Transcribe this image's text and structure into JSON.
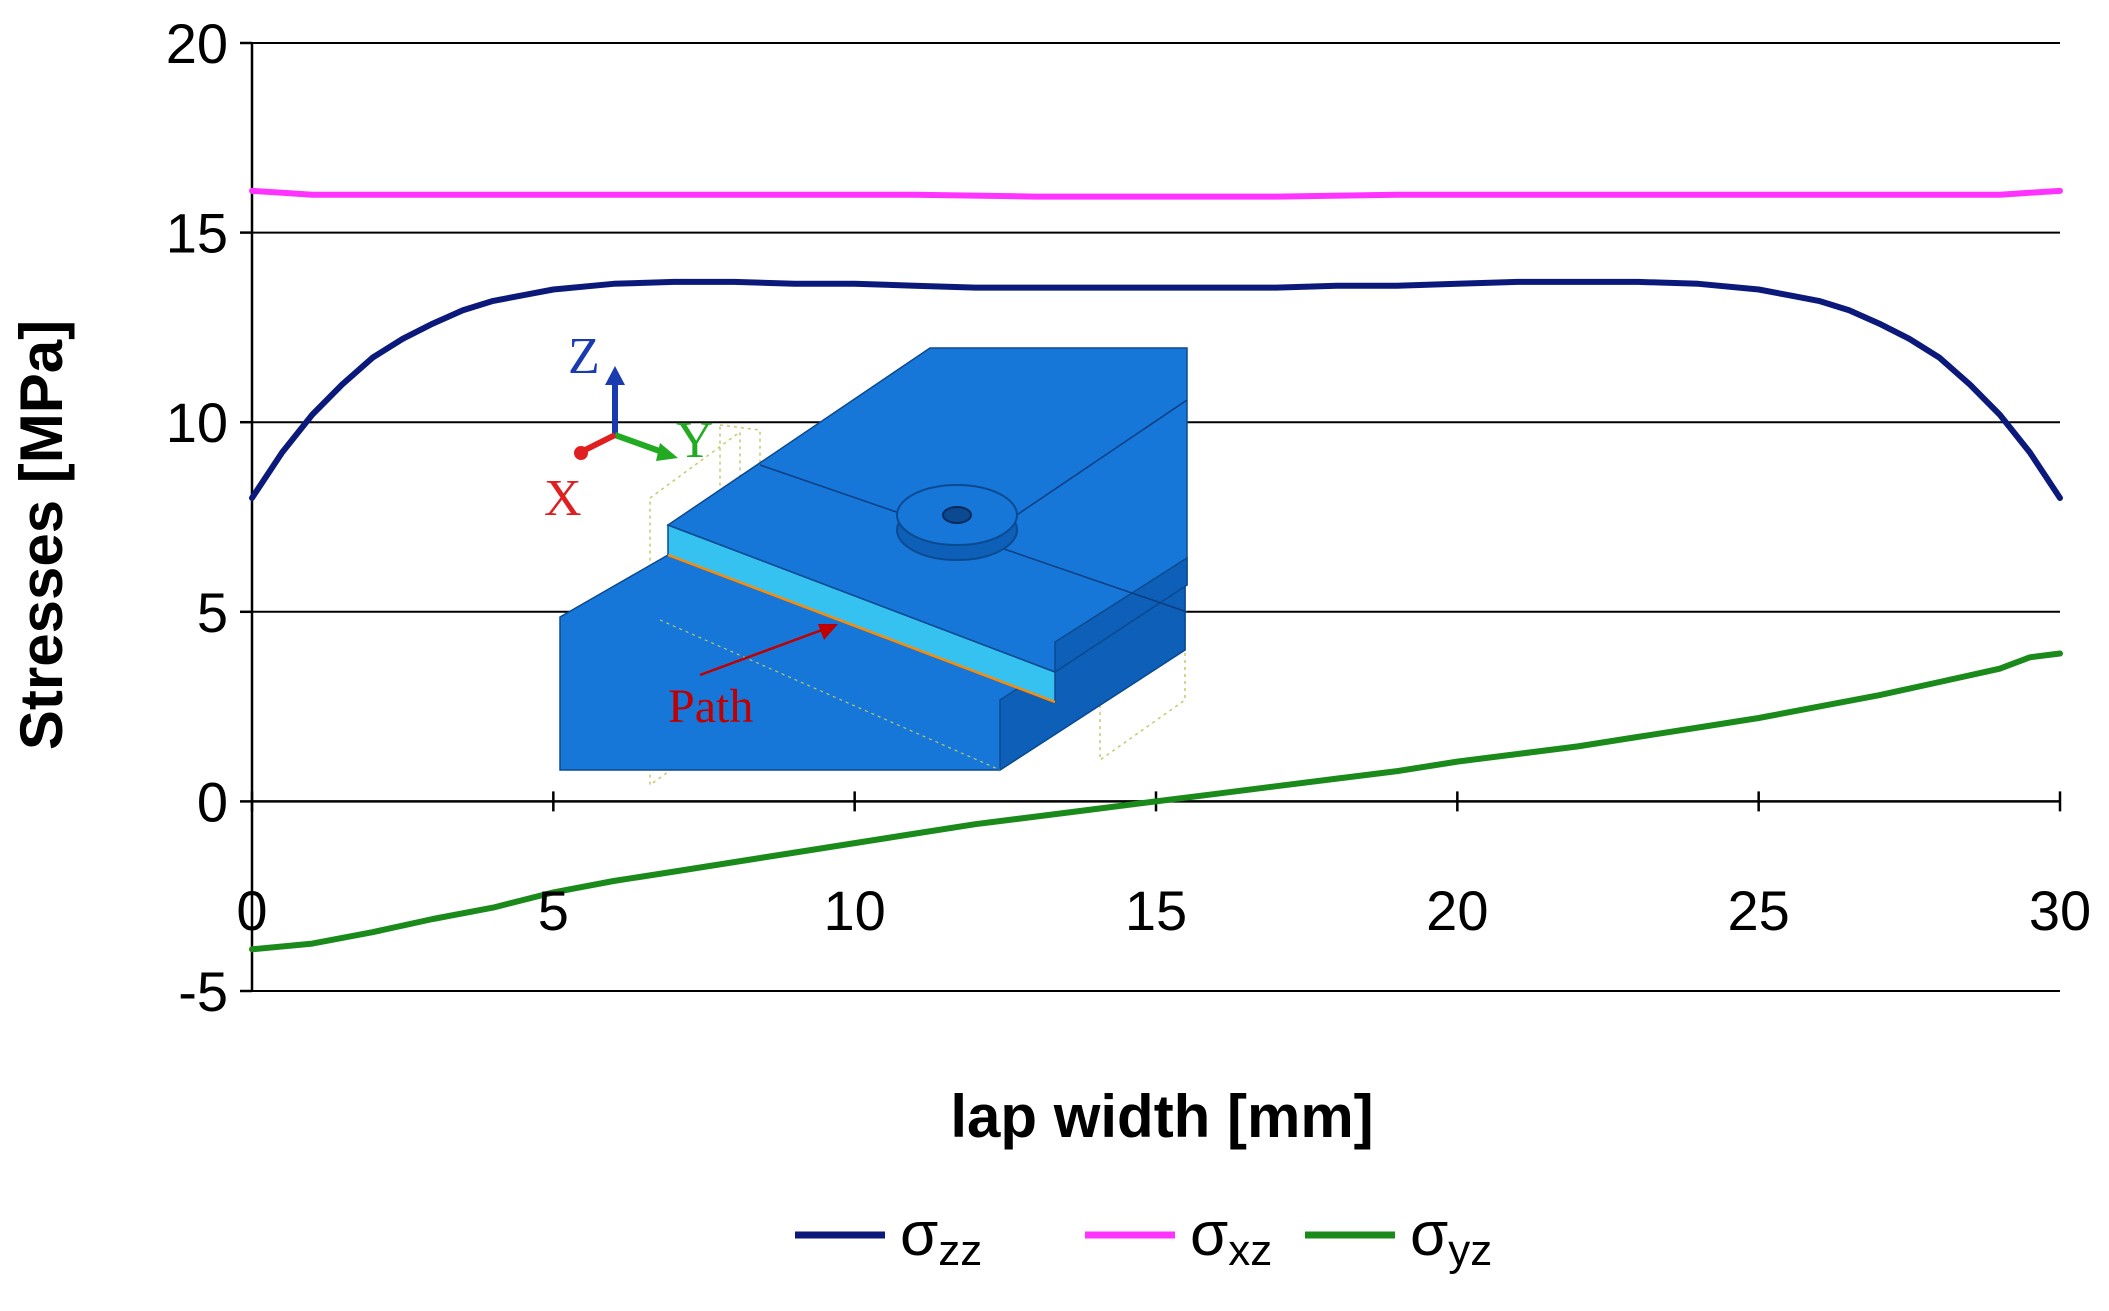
{
  "chart_data": {
    "type": "line",
    "xlabel": "lap width [mm]",
    "ylabel": "Stresses [MPa]",
    "xlim": [
      0,
      30
    ],
    "ylim": [
      -5,
      20
    ],
    "x_ticks": [
      0,
      5,
      10,
      15,
      20,
      25,
      30
    ],
    "y_ticks": [
      -5,
      0,
      5,
      10,
      15,
      20
    ],
    "grid": "horizontal",
    "legend_position": "bottom",
    "series": [
      {
        "name": "σzz",
        "name_main": "σ",
        "name_sub": "zz",
        "color": "#0b1a7a",
        "x": [
          0,
          0.5,
          1,
          1.5,
          2,
          2.5,
          3,
          3.5,
          4,
          4.5,
          5,
          6,
          7,
          8,
          9,
          10,
          11,
          12,
          13,
          14,
          15,
          16,
          17,
          18,
          19,
          20,
          21,
          22,
          23,
          24,
          25,
          25.5,
          26,
          26.5,
          27,
          27.5,
          28,
          28.5,
          29,
          29.5,
          30
        ],
        "y": [
          8.0,
          9.2,
          10.2,
          11.0,
          11.7,
          12.2,
          12.6,
          12.95,
          13.2,
          13.35,
          13.5,
          13.65,
          13.7,
          13.7,
          13.65,
          13.65,
          13.6,
          13.55,
          13.55,
          13.55,
          13.55,
          13.55,
          13.55,
          13.6,
          13.6,
          13.65,
          13.7,
          13.7,
          13.7,
          13.65,
          13.5,
          13.35,
          13.2,
          12.95,
          12.6,
          12.2,
          11.7,
          11.0,
          10.2,
          9.2,
          8.0
        ]
      },
      {
        "name": "σxz",
        "name_main": "σ",
        "name_sub": "xz",
        "color": "#ff33ff",
        "x": [
          0,
          0.5,
          1,
          3,
          5,
          7,
          9,
          11,
          13,
          15,
          17,
          19,
          21,
          23,
          25,
          27,
          29,
          29.5,
          30
        ],
        "y": [
          16.1,
          16.05,
          16.0,
          16.0,
          16.0,
          16.0,
          16.0,
          16.0,
          15.95,
          15.95,
          15.95,
          16.0,
          16.0,
          16.0,
          16.0,
          16.0,
          16.0,
          16.05,
          16.1
        ]
      },
      {
        "name": "σyz",
        "name_main": "σ",
        "name_sub": "yz",
        "color": "#1a8a1a",
        "x": [
          0,
          1,
          2,
          3,
          4,
          5,
          6,
          7,
          8,
          9,
          10,
          11,
          12,
          13,
          14,
          15,
          16,
          17,
          18,
          19,
          20,
          21,
          22,
          23,
          24,
          25,
          26,
          27,
          28,
          29,
          29.5,
          30
        ],
        "y": [
          -3.9,
          -3.75,
          -3.45,
          -3.1,
          -2.8,
          -2.4,
          -2.1,
          -1.85,
          -1.6,
          -1.35,
          -1.1,
          -0.85,
          -0.6,
          -0.4,
          -0.2,
          0.0,
          0.2,
          0.4,
          0.6,
          0.8,
          1.05,
          1.25,
          1.45,
          1.7,
          1.95,
          2.2,
          2.5,
          2.8,
          3.15,
          3.5,
          3.8,
          3.9
        ]
      }
    ]
  },
  "inset": {
    "axis_labels": {
      "z": "Z",
      "y": "Y",
      "x": "X"
    },
    "axis_colors": {
      "z": "#1a3ab0",
      "y": "#22aa22",
      "x": "#e02020"
    },
    "path_label": "Path",
    "colors": {
      "plate": "#1677d8",
      "plate_dark": "#0d5fb8",
      "adhesive": "#36c2f0",
      "arrow": "#c00000"
    }
  }
}
